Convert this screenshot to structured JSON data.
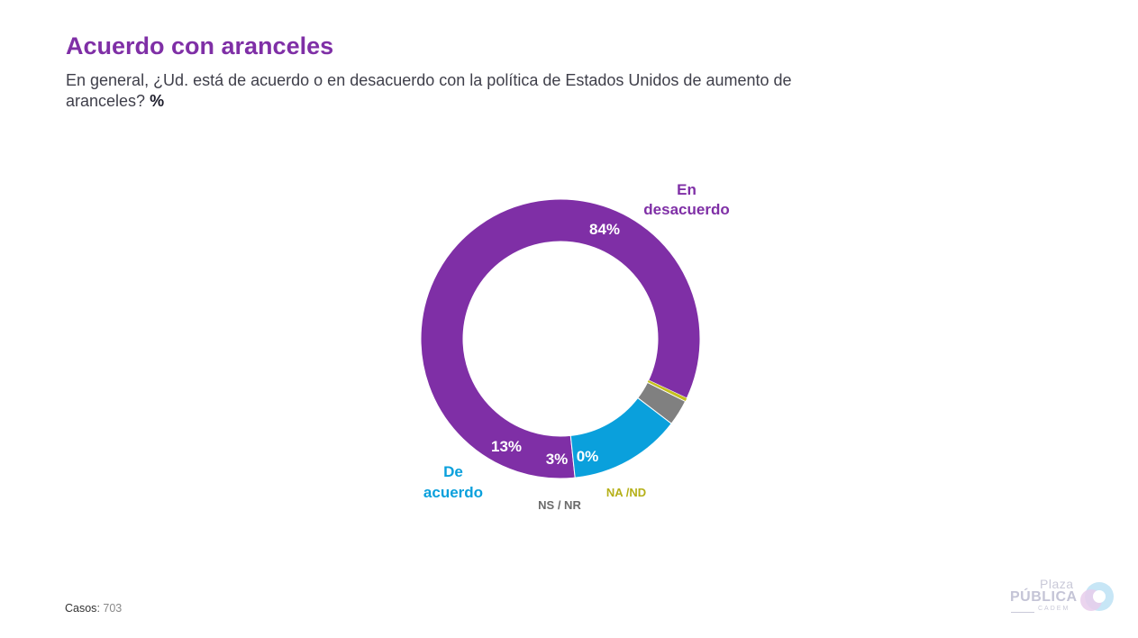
{
  "header": {
    "title": "Acuerdo con aranceles",
    "subtitle": "En general, ¿Ud. está de acuerdo o en desacuerdo con la política de Estados Unidos de aumento de aranceles?",
    "unit": "%"
  },
  "footer": {
    "cases_label": "Casos",
    "cases_sep": ":",
    "cases_value": "703"
  },
  "logo": {
    "line1": "Plaza",
    "line2": "PÚBLICA",
    "line3": "CADEM"
  },
  "chart_data": {
    "type": "pie",
    "donut": true,
    "slices": [
      {
        "category": "En desacuerdo",
        "value": 84,
        "label": "84%",
        "color": "#7f2fa6"
      },
      {
        "category": "NA /ND",
        "value": 0.4,
        "label": "0%",
        "color": "#c4bf1e"
      },
      {
        "category": "NS / NR",
        "value": 3,
        "label": "3%",
        "color": "#808080"
      },
      {
        "category": "De acuerdo",
        "value": 13,
        "label": "13%",
        "color": "#0aa0dc"
      }
    ]
  }
}
